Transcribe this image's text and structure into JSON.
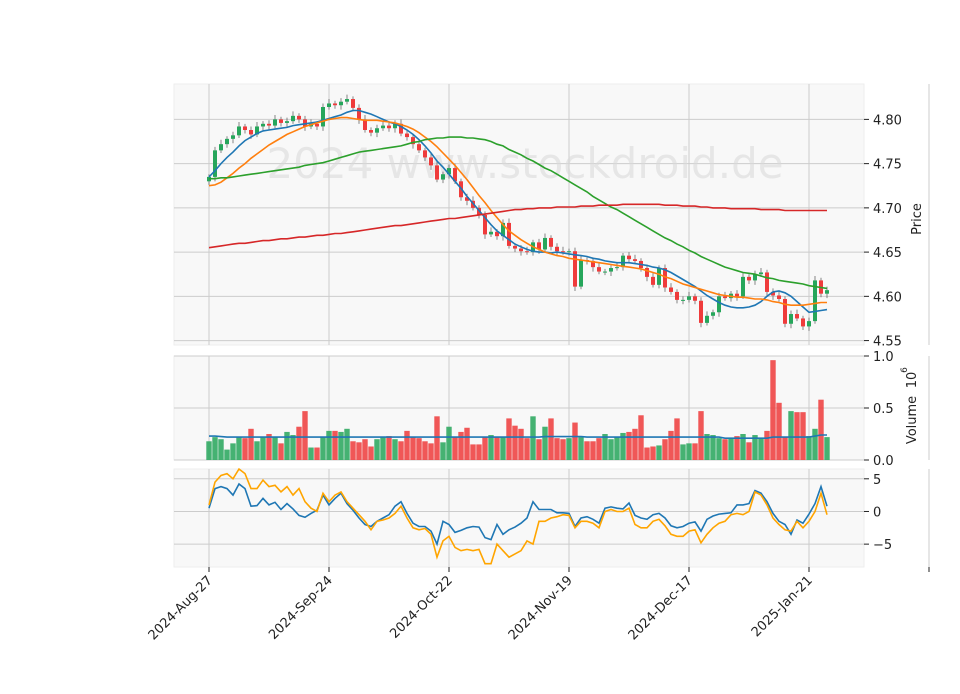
{
  "colors": {
    "up": "#26a65b",
    "down": "#ef3b3b",
    "ma_short": "#1f77b4",
    "ma_mid": "#ff7f0e",
    "ma_long": "#2ca02c",
    "ma_200": "#d62728",
    "vol_avg": "#1f77b4",
    "osc_1": "#1f77b4",
    "osc_2": "#ffa500",
    "panel_bg": "#f8f8f8",
    "grid": "#cccccc"
  },
  "watermark": "2024 www.stockdroid.de",
  "chart_data": {
    "type": "candlestick",
    "x_tick_labels": [
      "2024-Aug-27",
      "2024-Sep-24",
      "2024-Oct-22",
      "2024-Nov-19",
      "2024-Dec-17",
      "2025-Jan-21"
    ],
    "price_panel": {
      "ylabel": "Price",
      "ylim": [
        4.545,
        4.84
      ],
      "yticks": [
        "4.55",
        "4.60",
        "4.65",
        "4.70",
        "4.75",
        "4.80"
      ],
      "closes": [
        4.735,
        4.765,
        4.772,
        4.778,
        4.782,
        4.792,
        4.788,
        4.783,
        4.792,
        4.795,
        4.793,
        4.8,
        4.796,
        4.798,
        4.804,
        4.8,
        4.792,
        4.795,
        4.792,
        4.814,
        4.818,
        4.816,
        4.82,
        4.823,
        4.813,
        4.8,
        4.788,
        4.785,
        4.79,
        4.793,
        4.79,
        4.795,
        4.784,
        4.78,
        4.772,
        4.765,
        4.757,
        4.748,
        4.732,
        4.738,
        4.745,
        4.73,
        4.712,
        4.708,
        4.7,
        4.692,
        4.67,
        4.673,
        4.668,
        4.683,
        4.657,
        4.654,
        4.651,
        4.65,
        4.661,
        4.653,
        4.666,
        4.656,
        4.651,
        4.65,
        4.651,
        4.611,
        4.641,
        4.64,
        4.633,
        4.628,
        4.628,
        4.632,
        4.633,
        4.646,
        4.642,
        4.64,
        4.632,
        4.622,
        4.613,
        4.632,
        4.61,
        4.605,
        4.596,
        4.596,
        4.6,
        4.595,
        4.57,
        4.578,
        4.582,
        4.6,
        4.598,
        4.603,
        4.6,
        4.622,
        4.618,
        4.625,
        4.627,
        4.605,
        4.601,
        4.597,
        4.569,
        4.58,
        4.575,
        4.566,
        4.572,
        4.618,
        4.603,
        4.607
      ],
      "series": [
        {
          "key": "ma_short",
          "values": [
            4.735,
            4.742,
            4.75,
            4.757,
            4.763,
            4.77,
            4.776,
            4.78,
            4.784,
            4.787,
            4.788,
            4.789,
            4.79,
            4.791,
            4.793,
            4.794,
            4.795,
            4.796,
            4.797,
            4.799,
            4.801,
            4.803,
            4.805,
            4.808,
            4.81,
            4.81,
            4.808,
            4.806,
            4.803,
            4.8,
            4.797,
            4.795,
            4.792,
            4.788,
            4.783,
            4.777,
            4.77,
            4.762,
            4.753,
            4.746,
            4.738,
            4.73,
            4.722,
            4.713,
            4.705,
            4.697,
            4.689,
            4.681,
            4.674,
            4.669,
            4.664,
            4.659,
            4.656,
            4.653,
            4.651,
            4.65,
            4.65,
            4.649,
            4.65,
            4.649,
            4.648,
            4.647,
            4.646,
            4.645,
            4.643,
            4.642,
            4.64,
            4.639,
            4.638,
            4.638,
            4.638,
            4.637,
            4.636,
            4.635,
            4.633,
            4.632,
            4.63,
            4.627,
            4.623,
            4.619,
            4.615,
            4.611,
            4.606,
            4.601,
            4.597,
            4.593,
            4.59,
            4.588,
            4.587,
            4.587,
            4.588,
            4.59,
            4.594,
            4.6,
            4.605,
            4.606,
            4.604,
            4.6,
            4.594,
            4.588,
            4.582,
            4.583,
            4.584,
            4.585
          ]
        },
        {
          "key": "ma_mid",
          "values": [
            4.725,
            4.726,
            4.729,
            4.734,
            4.739,
            4.745,
            4.75,
            4.756,
            4.761,
            4.766,
            4.771,
            4.775,
            4.779,
            4.783,
            4.786,
            4.789,
            4.792,
            4.794,
            4.796,
            4.798,
            4.8,
            4.801,
            4.802,
            4.802,
            4.801,
            4.8,
            4.799,
            4.799,
            4.799,
            4.798,
            4.797,
            4.796,
            4.794,
            4.792,
            4.789,
            4.785,
            4.78,
            4.775,
            4.769,
            4.762,
            4.755,
            4.748,
            4.74,
            4.732,
            4.723,
            4.714,
            4.706,
            4.697,
            4.689,
            4.681,
            4.674,
            4.669,
            4.664,
            4.66,
            4.656,
            4.653,
            4.65,
            4.648,
            4.646,
            4.645,
            4.643,
            4.642,
            4.641,
            4.64,
            4.639,
            4.638,
            4.637,
            4.636,
            4.635,
            4.634,
            4.633,
            4.632,
            4.631,
            4.629,
            4.627,
            4.625,
            4.622,
            4.62,
            4.617,
            4.614,
            4.612,
            4.61,
            4.608,
            4.606,
            4.604,
            4.602,
            4.601,
            4.6,
            4.599,
            4.599,
            4.598,
            4.597,
            4.597,
            4.596,
            4.594,
            4.593,
            4.591,
            4.59,
            4.59,
            4.59,
            4.591,
            4.592,
            4.593,
            4.593
          ]
        },
        {
          "key": "ma_long",
          "values": [
            4.733,
            4.733,
            4.734,
            4.734,
            4.735,
            4.736,
            4.737,
            4.738,
            4.739,
            4.74,
            4.741,
            4.742,
            4.743,
            4.744,
            4.745,
            4.746,
            4.748,
            4.749,
            4.75,
            4.751,
            4.753,
            4.755,
            4.757,
            4.759,
            4.761,
            4.763,
            4.764,
            4.765,
            4.766,
            4.767,
            4.768,
            4.769,
            4.77,
            4.772,
            4.774,
            4.775,
            4.777,
            4.778,
            4.779,
            4.779,
            4.78,
            4.78,
            4.78,
            4.779,
            4.779,
            4.778,
            4.777,
            4.775,
            4.772,
            4.77,
            4.766,
            4.763,
            4.76,
            4.756,
            4.753,
            4.749,
            4.745,
            4.742,
            4.738,
            4.734,
            4.73,
            4.726,
            4.722,
            4.718,
            4.713,
            4.709,
            4.705,
            4.701,
            4.698,
            4.694,
            4.69,
            4.686,
            4.682,
            4.678,
            4.674,
            4.67,
            4.666,
            4.663,
            4.659,
            4.656,
            4.652,
            4.649,
            4.645,
            4.642,
            4.639,
            4.636,
            4.633,
            4.631,
            4.629,
            4.627,
            4.626,
            4.625,
            4.623,
            4.621,
            4.62,
            4.618,
            4.617,
            4.616,
            4.615,
            4.614,
            4.612,
            4.611,
            4.61,
            4.609
          ]
        },
        {
          "key": "ma_200",
          "values": [
            4.655,
            4.656,
            4.657,
            4.658,
            4.659,
            4.66,
            4.66,
            4.661,
            4.662,
            4.663,
            4.663,
            4.664,
            4.665,
            4.665,
            4.666,
            4.667,
            4.667,
            4.668,
            4.669,
            4.669,
            4.67,
            4.671,
            4.671,
            4.672,
            4.673,
            4.674,
            4.675,
            4.676,
            4.677,
            4.678,
            4.679,
            4.68,
            4.68,
            4.681,
            4.682,
            4.683,
            4.684,
            4.685,
            4.686,
            4.687,
            4.688,
            4.688,
            4.689,
            4.69,
            4.691,
            4.692,
            4.693,
            4.694,
            4.695,
            4.696,
            4.697,
            4.698,
            4.698,
            4.699,
            4.699,
            4.7,
            4.7,
            4.7,
            4.701,
            4.701,
            4.701,
            4.701,
            4.702,
            4.702,
            4.702,
            4.703,
            4.703,
            4.703,
            4.703,
            4.704,
            4.704,
            4.704,
            4.704,
            4.704,
            4.704,
            4.704,
            4.703,
            4.703,
            4.703,
            4.702,
            4.702,
            4.702,
            4.701,
            4.701,
            4.7,
            4.7,
            4.7,
            4.699,
            4.699,
            4.699,
            4.699,
            4.699,
            4.698,
            4.698,
            4.698,
            4.698,
            4.697,
            4.697,
            4.697,
            4.697,
            4.697,
            4.697,
            4.697,
            4.697
          ]
        }
      ]
    },
    "volume_panel": {
      "ylabel": "Volume",
      "scale_label": "10",
      "scale_exponent": "6",
      "ylim": [
        0,
        1.0
      ],
      "yticks": [
        "0.0",
        "0.5",
        "1.0"
      ],
      "values": [
        0.18,
        0.22,
        0.2,
        0.1,
        0.16,
        0.22,
        0.21,
        0.3,
        0.18,
        0.22,
        0.25,
        0.22,
        0.16,
        0.27,
        0.24,
        0.32,
        0.47,
        0.12,
        0.12,
        0.22,
        0.28,
        0.28,
        0.27,
        0.3,
        0.18,
        0.17,
        0.2,
        0.13,
        0.2,
        0.22,
        0.23,
        0.2,
        0.18,
        0.28,
        0.22,
        0.21,
        0.18,
        0.16,
        0.42,
        0.17,
        0.32,
        0.22,
        0.27,
        0.31,
        0.15,
        0.15,
        0.22,
        0.24,
        0.22,
        0.22,
        0.4,
        0.33,
        0.3,
        0.21,
        0.42,
        0.2,
        0.32,
        0.4,
        0.21,
        0.2,
        0.21,
        0.36,
        0.22,
        0.18,
        0.18,
        0.21,
        0.25,
        0.2,
        0.22,
        0.26,
        0.27,
        0.3,
        0.43,
        0.12,
        0.13,
        0.14,
        0.2,
        0.28,
        0.4,
        0.15,
        0.16,
        0.16,
        0.47,
        0.25,
        0.24,
        0.21,
        0.2,
        0.21,
        0.23,
        0.25,
        0.17,
        0.24,
        0.21,
        0.28,
        0.96,
        0.55,
        0.22,
        0.47,
        0.46,
        0.46,
        0.23,
        0.3,
        0.58,
        0.22
      ],
      "average": [
        0.23,
        0.23,
        0.225,
        0.22,
        0.22,
        0.22,
        0.22,
        0.22,
        0.22,
        0.22,
        0.22,
        0.22,
        0.22,
        0.22,
        0.22,
        0.22,
        0.22,
        0.22,
        0.22,
        0.22,
        0.22,
        0.22,
        0.22,
        0.22,
        0.22,
        0.22,
        0.22,
        0.22,
        0.22,
        0.22,
        0.22,
        0.22,
        0.22,
        0.22,
        0.22,
        0.22,
        0.22,
        0.22,
        0.22,
        0.22,
        0.22,
        0.22,
        0.22,
        0.22,
        0.22,
        0.22,
        0.22,
        0.22,
        0.22,
        0.22,
        0.22,
        0.22,
        0.22,
        0.22,
        0.22,
        0.22,
        0.225,
        0.225,
        0.225,
        0.225,
        0.225,
        0.225,
        0.225,
        0.22,
        0.22,
        0.22,
        0.22,
        0.22,
        0.22,
        0.22,
        0.22,
        0.22,
        0.22,
        0.22,
        0.22,
        0.22,
        0.22,
        0.22,
        0.22,
        0.22,
        0.22,
        0.22,
        0.22,
        0.22,
        0.22,
        0.22,
        0.21,
        0.21,
        0.21,
        0.21,
        0.21,
        0.21,
        0.21,
        0.21,
        0.22,
        0.22,
        0.22,
        0.22,
        0.22,
        0.22,
        0.22,
        0.23,
        0.24,
        0.24
      ]
    },
    "oscillator_panel": {
      "ylim": [
        -8.5,
        6.5
      ],
      "yticks": [
        "5",
        "0",
        "−5"
      ],
      "series": [
        {
          "key": "osc_1",
          "values": [
            0.5,
            3.5,
            3.8,
            3.5,
            2.5,
            4.2,
            3.5,
            0.8,
            0.9,
            2.0,
            1.0,
            1.4,
            0.3,
            1.2,
            0.4,
            -0.6,
            -0.9,
            -0.3,
            0.2,
            2.5,
            1.0,
            2.0,
            2.8,
            1.2,
            0.2,
            -1.0,
            -2.0,
            -2.3,
            -1.5,
            -1.0,
            -0.5,
            0.8,
            1.5,
            -0.3,
            -1.8,
            -2.3,
            -2.3,
            -3.0,
            -5.0,
            -1.5,
            -2.0,
            -3.2,
            -2.9,
            -2.5,
            -2.3,
            -2.4,
            -4.0,
            -4.3,
            -2.0,
            -3.5,
            -2.8,
            -2.4,
            -1.8,
            -1.0,
            1.5,
            0.3,
            0.3,
            0.3,
            -0.2,
            -0.2,
            -0.3,
            -2.3,
            -1.0,
            -0.8,
            -1.2,
            -1.8,
            0.5,
            0.7,
            0.5,
            0.4,
            1.3,
            -0.6,
            -1.0,
            -1.2,
            -0.5,
            -0.3,
            -1.0,
            -2.2,
            -2.5,
            -2.3,
            -1.8,
            -1.6,
            -3.0,
            -1.2,
            -0.7,
            -0.4,
            -0.3,
            -0.2,
            1.0,
            1.0,
            1.2,
            3.2,
            2.8,
            1.5,
            -0.3,
            -1.5,
            -2.0,
            -3.5,
            -1.3,
            -1.8,
            -0.4,
            1.2,
            3.8,
            0.8
          ]
        },
        {
          "key": "osc_2",
          "values": [
            1.0,
            4.5,
            5.5,
            5.8,
            5.0,
            6.5,
            5.8,
            3.5,
            3.5,
            4.8,
            3.8,
            4.0,
            3.0,
            3.8,
            2.5,
            3.5,
            1.5,
            0.5,
            0.0,
            2.8,
            1.5,
            2.5,
            3.0,
            1.5,
            0.5,
            -0.5,
            -1.5,
            -2.8,
            -1.5,
            -1.3,
            -1.0,
            -0.3,
            0.8,
            -1.0,
            -2.5,
            -2.8,
            -2.6,
            -3.5,
            -7.0,
            -4.5,
            -3.8,
            -5.5,
            -6.0,
            -5.8,
            -6.0,
            -5.8,
            -8.0,
            -8.0,
            -5.0,
            -6.0,
            -7.0,
            -6.5,
            -6.0,
            -4.5,
            -5.0,
            -1.5,
            -1.5,
            -1.0,
            -0.8,
            -0.5,
            -0.6,
            -2.5,
            -1.5,
            -1.5,
            -1.8,
            -2.5,
            0.0,
            0.3,
            0.0,
            0.0,
            0.5,
            -2.0,
            -2.5,
            -2.5,
            -1.5,
            -1.2,
            -2.2,
            -3.5,
            -3.8,
            -3.8,
            -3.0,
            -2.8,
            -4.8,
            -3.5,
            -2.5,
            -1.8,
            -1.5,
            -0.5,
            -0.3,
            -0.5,
            0.0,
            3.0,
            2.5,
            1.0,
            -1.0,
            -2.0,
            -2.8,
            -3.0,
            -1.5,
            -2.5,
            -1.5,
            0.0,
            2.8,
            -0.5
          ]
        }
      ]
    }
  }
}
